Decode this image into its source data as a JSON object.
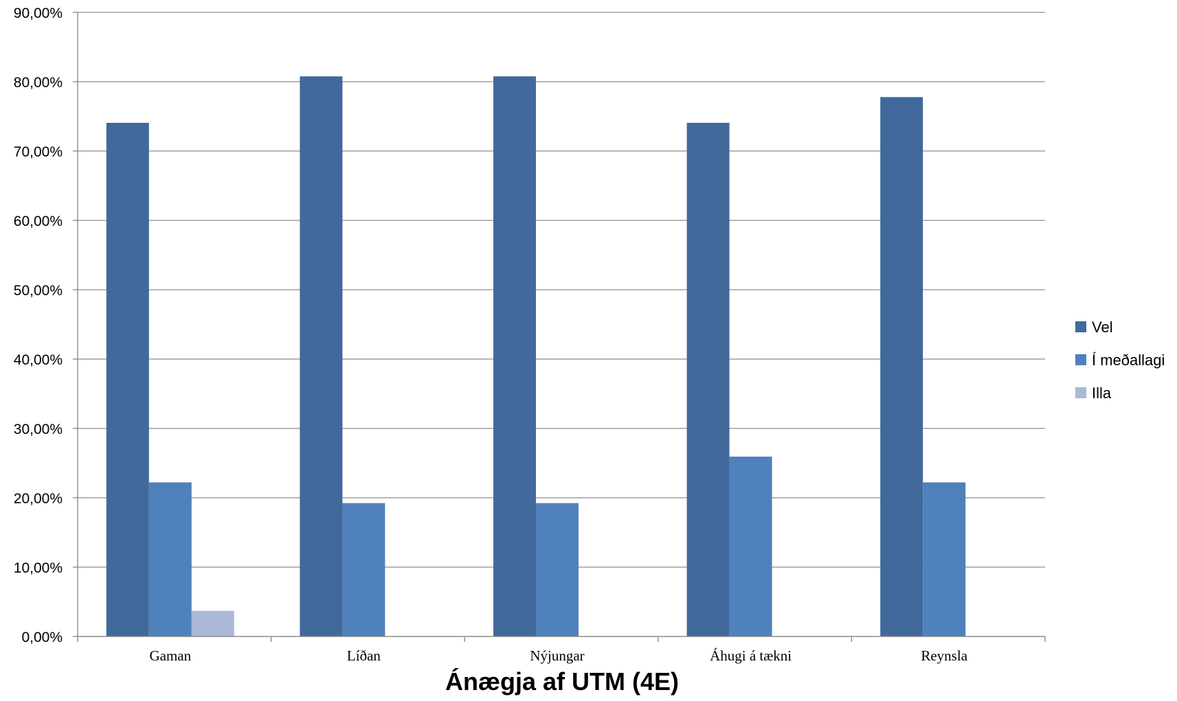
{
  "chart_data": {
    "type": "bar",
    "title": "Ánægja af UTM (4E)",
    "xlabel": "",
    "ylabel": "",
    "categories": [
      "Gaman",
      "Líðan",
      "Nýjungar",
      "Áhugi á tækni",
      "Reynsla"
    ],
    "series": [
      {
        "name": "Vel",
        "color": "#41699c",
        "values": [
          74.07,
          80.77,
          80.77,
          74.07,
          77.78
        ]
      },
      {
        "name": "Í meðallagi",
        "color": "#4f81bd",
        "values": [
          22.22,
          19.23,
          19.23,
          25.93,
          22.22
        ]
      },
      {
        "name": "Illa",
        "color": "#aab9d8",
        "values": [
          3.7,
          0,
          0,
          0,
          0
        ]
      }
    ],
    "ylim": [
      0,
      90
    ],
    "yticks": [
      "0,00%",
      "10,00%",
      "20,00%",
      "30,00%",
      "40,00%",
      "50,00%",
      "60,00%",
      "70,00%",
      "80,00%",
      "90,00%"
    ],
    "grid": true,
    "legend_position": "right"
  }
}
